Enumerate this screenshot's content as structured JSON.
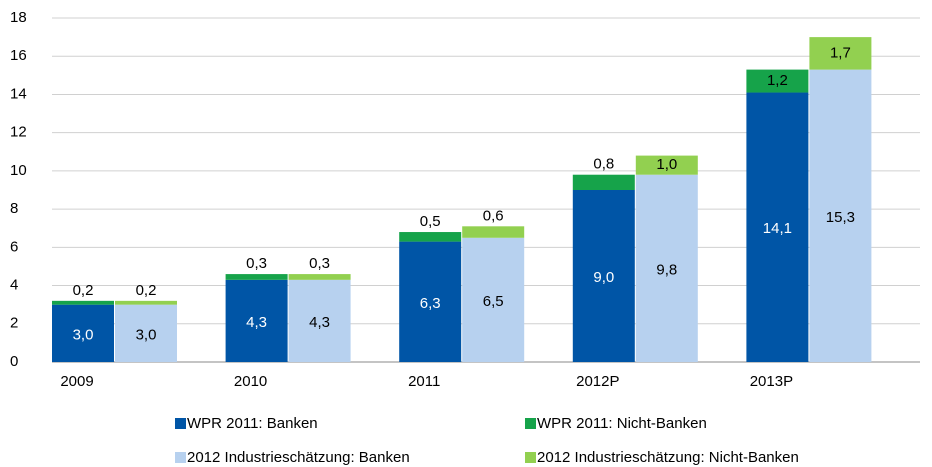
{
  "chart_data": {
    "type": "bar",
    "categories": [
      "2009",
      "2010",
      "2011",
      "2012P",
      "2013P"
    ],
    "series": [
      {
        "name": "WPR 2011: Banken",
        "color": "#0055a6",
        "values": [
          3.0,
          4.3,
          6.3,
          9.0,
          14.1
        ],
        "value_labels": [
          "3,0",
          "4,3",
          "6,3",
          "9,0",
          "14,1"
        ]
      },
      {
        "name": "WPR 2011: Nicht-Banken",
        "color": "#16a34a",
        "values": [
          0.2,
          0.3,
          0.5,
          0.8,
          1.2
        ],
        "value_labels": [
          "0,2",
          "0,3",
          "0,5",
          "0,8",
          "1,2"
        ]
      },
      {
        "name": "2012 Industrieschätzung: Banken",
        "color": "#b7d1ef",
        "values": [
          3.0,
          4.3,
          6.5,
          9.8,
          15.3
        ],
        "value_labels": [
          "3,0",
          "4,3",
          "6,5",
          "9,8",
          "15,3"
        ]
      },
      {
        "name": "2012 Industrieschätzung: Nicht-Banken",
        "color": "#92d050",
        "values": [
          0.2,
          0.3,
          0.6,
          1.0,
          1.7
        ],
        "value_labels": [
          "0,2",
          "0,3",
          "0,6",
          "1,0",
          "1,7"
        ]
      }
    ],
    "ylim": [
      0,
      18
    ],
    "yticks": [
      0,
      2,
      4,
      6,
      8,
      10,
      12,
      14,
      16,
      18
    ],
    "grid": true
  }
}
